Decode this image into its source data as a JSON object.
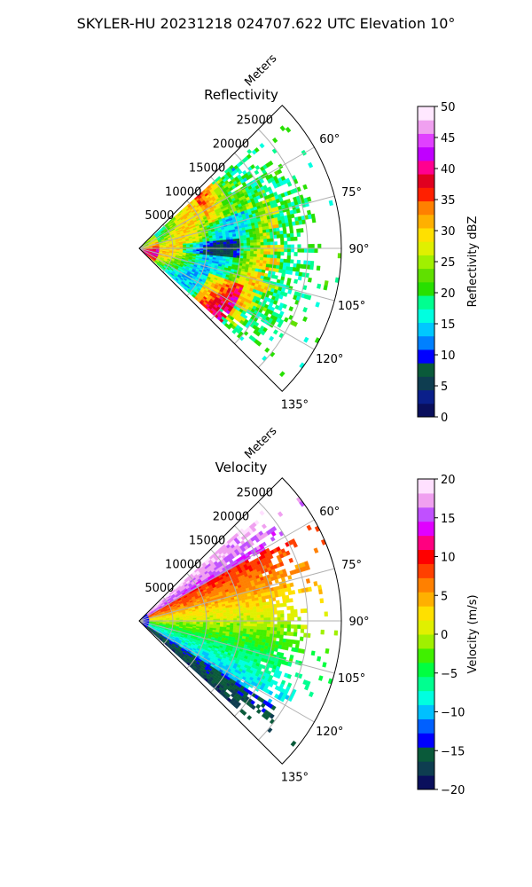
{
  "figure": {
    "title": "SKYLER-HU  20231218  024707.622 UTC Elevation 10°"
  },
  "chart_data": [
    {
      "type": "heatmap",
      "projection": "polar-sector",
      "title": "Reflectivity",
      "radial_axis_label": "Meters",
      "radial_ticks": [
        5000,
        10000,
        15000,
        20000,
        25000
      ],
      "radial_tick_labels": [
        "5000",
        "10000",
        "15000",
        "20000",
        "25000"
      ],
      "radial_range": [
        0,
        30000
      ],
      "azimuth_range_deg": [
        45,
        135
      ],
      "azimuth_ticks_deg": [
        60,
        75,
        90,
        105,
        120,
        135
      ],
      "azimuth_tick_labels": [
        "60°",
        "75°",
        "90°",
        "105°",
        "120°",
        "135°"
      ],
      "grid": true,
      "colorbar": {
        "label": "Reflectivity dBZ",
        "vmin": 0,
        "vmax": 50,
        "ticks": [
          0,
          5,
          10,
          15,
          20,
          25,
          30,
          35,
          40,
          45,
          50
        ],
        "tick_labels": [
          "0",
          "5",
          "10",
          "15",
          "20",
          "25",
          "30",
          "35",
          "40",
          "45",
          "50"
        ],
        "colormap": [
          "#0a0f5c",
          "#0a1f8a",
          "#0e3d50",
          "#0a5a3a",
          "#0000ff",
          "#0080ff",
          "#00c8ff",
          "#00ffe0",
          "#00ff90",
          "#28e000",
          "#60e000",
          "#a0f000",
          "#e0f000",
          "#ffe000",
          "#ffb000",
          "#ff8000",
          "#ff2000",
          "#e00020",
          "#ff0090",
          "#c000ff",
          "#e040ff",
          "#f0a0f0",
          "#ffe8ff"
        ]
      }
    },
    {
      "type": "heatmap",
      "projection": "polar-sector",
      "title": "Velocity",
      "radial_axis_label": "Meters",
      "radial_ticks": [
        5000,
        10000,
        15000,
        20000,
        25000
      ],
      "radial_tick_labels": [
        "5000",
        "10000",
        "15000",
        "20000",
        "25000"
      ],
      "radial_range": [
        0,
        30000
      ],
      "azimuth_range_deg": [
        45,
        135
      ],
      "azimuth_ticks_deg": [
        60,
        75,
        90,
        105,
        120,
        135
      ],
      "azimuth_tick_labels": [
        "60°",
        "75°",
        "90°",
        "105°",
        "120°",
        "135°"
      ],
      "grid": true,
      "colorbar": {
        "label": "Velocity (m/s)",
        "vmin": -20,
        "vmax": 20,
        "ticks": [
          -20,
          -15,
          -10,
          -5,
          0,
          5,
          10,
          15,
          20
        ],
        "tick_labels": [
          "−20",
          "−15",
          "−10",
          "−5",
          "0",
          "5",
          "10",
          "15",
          "20"
        ],
        "colormap": [
          "#0a0f5c",
          "#0e3d50",
          "#0a5a3a",
          "#0000ff",
          "#0060ff",
          "#00c0ff",
          "#00ffe0",
          "#00ff90",
          "#00ff40",
          "#40f000",
          "#a0f000",
          "#e0f000",
          "#ffe000",
          "#ffb000",
          "#ff8000",
          "#ff4000",
          "#ff0000",
          "#ff0080",
          "#e000ff",
          "#c050ff",
          "#f0a0f0",
          "#ffe0ff"
        ]
      }
    }
  ]
}
